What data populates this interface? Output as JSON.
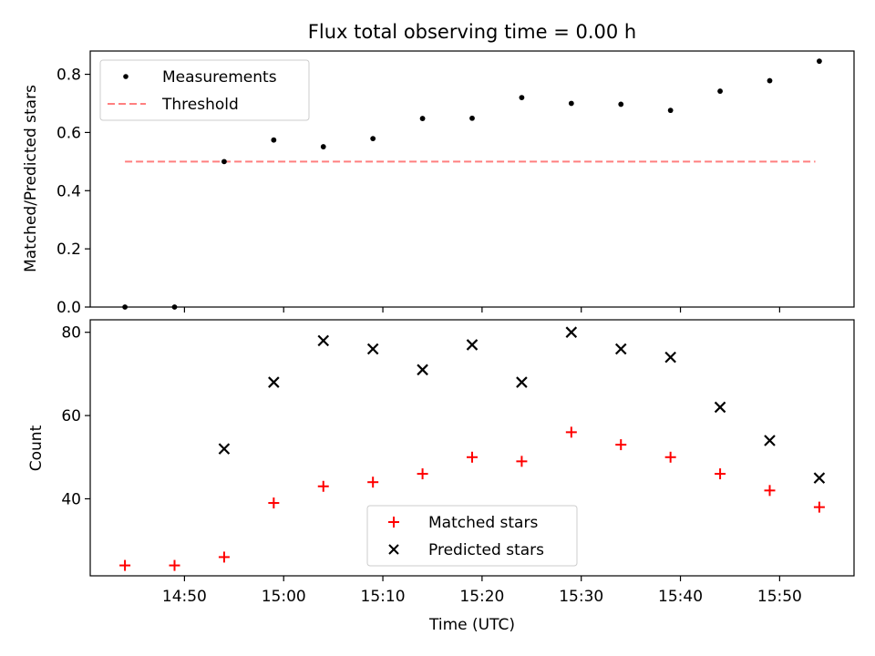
{
  "chart_data": [
    {
      "type": "scatter",
      "title": "Flux total observing time = 0.00 h",
      "xlabel": "",
      "ylabel": "Matched/Predicted stars",
      "x_minutes_since_1444": [
        0,
        5,
        10,
        15,
        20,
        25,
        30,
        35,
        40,
        45,
        50,
        55,
        60,
        65,
        70
      ],
      "xlim_minutes": [
        -3.5,
        73.5
      ],
      "ylim": [
        0,
        0.88
      ],
      "yticks": [
        "0.0",
        "0.2",
        "0.4",
        "0.6",
        "0.8"
      ],
      "ytick_values": [
        0,
        0.2,
        0.4,
        0.6,
        0.8
      ],
      "legend": "upper-left",
      "series": [
        {
          "name": "Measurements",
          "marker": "dot",
          "color": "#000000",
          "values": [
            0.0,
            0.0,
            0.5,
            0.574,
            0.551,
            0.579,
            0.648,
            0.649,
            0.72,
            0.7,
            0.697,
            0.676,
            0.742,
            0.778,
            0.845
          ]
        },
        {
          "name": "Threshold",
          "style": "dashed",
          "color": "#ff7f7f",
          "x_range_minutes": [
            0,
            69.6
          ],
          "value": 0.5
        }
      ]
    },
    {
      "type": "scatter",
      "title": "",
      "xlabel": "Time (UTC)",
      "ylabel": "Count",
      "x_minutes_since_1444": [
        0,
        5,
        10,
        15,
        20,
        25,
        30,
        35,
        40,
        45,
        50,
        55,
        60,
        65,
        70
      ],
      "xlim_minutes": [
        -3.5,
        73.5
      ],
      "ylim": [
        21.5,
        83
      ],
      "yticks": [
        "40",
        "60",
        "80"
      ],
      "ytick_values": [
        40,
        60,
        80
      ],
      "xticks": [
        "14:50",
        "15:00",
        "15:10",
        "15:20",
        "15:30",
        "15:40",
        "15:50"
      ],
      "xtick_minutes": [
        6,
        16,
        26,
        36,
        46,
        56,
        66
      ],
      "legend": "lower-center",
      "series": [
        {
          "name": "Matched stars",
          "marker": "plus",
          "color": "#ff0000",
          "values": [
            24,
            24,
            26,
            39,
            43,
            44,
            46,
            50,
            49,
            56,
            53,
            50,
            46,
            42,
            38
          ]
        },
        {
          "name": "Predicted stars",
          "marker": "x",
          "color": "#000000",
          "values": [
            null,
            null,
            52,
            68,
            78,
            76,
            71,
            77,
            68,
            80,
            76,
            74,
            62,
            54,
            45
          ]
        }
      ]
    }
  ]
}
